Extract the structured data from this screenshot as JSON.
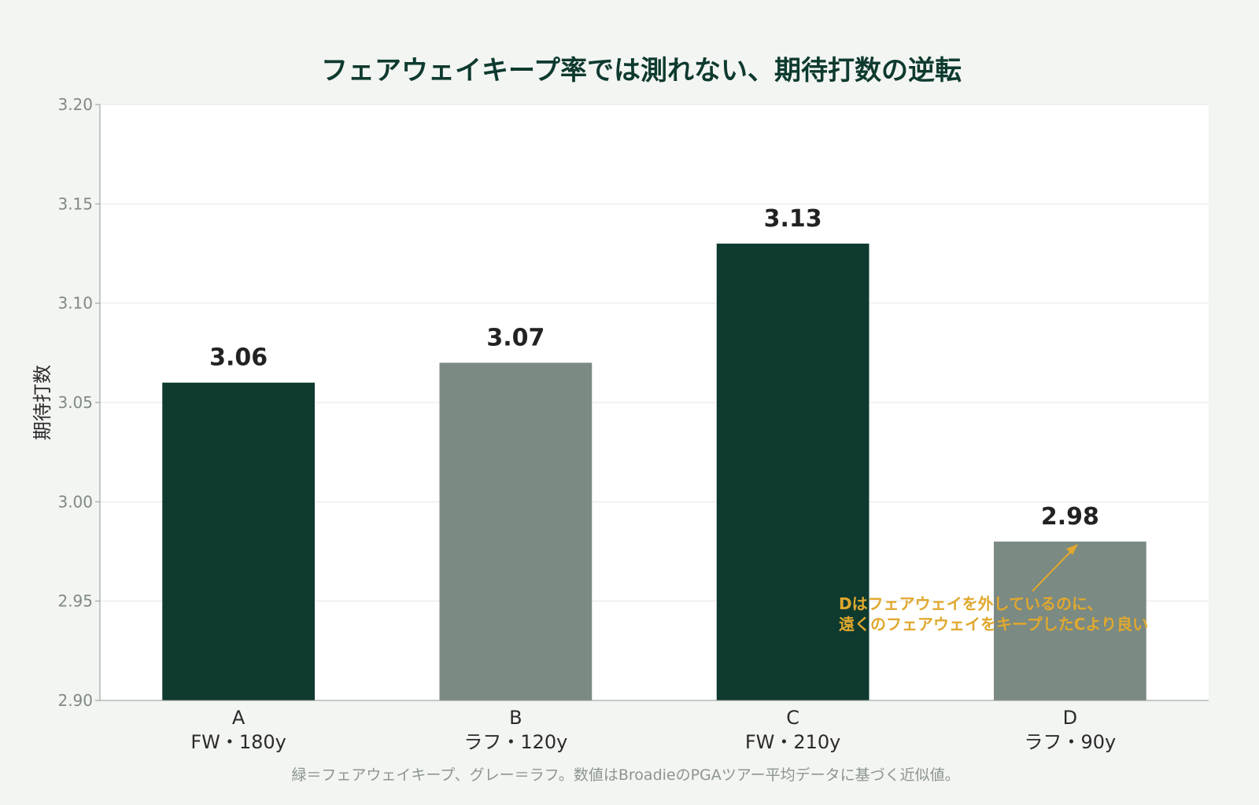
{
  "colors": {
    "background": "#f3f5f2",
    "plot_background": "#ffffff",
    "fairway": "#0e3a2f",
    "rough": "#7b8a82",
    "annotation": "#e0a82e"
  },
  "chart_data": {
    "type": "bar",
    "title": "フェアウェイキープ率では測れない、期待打数の逆転",
    "xlabel": "",
    "ylabel": "期待打数",
    "ylim": [
      2.9,
      3.2
    ],
    "yticks": [
      "3.20",
      "3.15",
      "3.10",
      "3.05",
      "3.00",
      "2.95",
      "2.90"
    ],
    "grid": true,
    "categories": [
      {
        "letter": "A",
        "sub": "FW・180y"
      },
      {
        "letter": "B",
        "sub": "ラフ・120y"
      },
      {
        "letter": "C",
        "sub": "FW・210y"
      },
      {
        "letter": "D",
        "sub": "ラフ・90y"
      }
    ],
    "values": [
      3.06,
      3.07,
      3.13,
      2.98
    ],
    "value_labels": [
      "3.06",
      "3.07",
      "3.13",
      "2.98"
    ],
    "bar_kind": [
      "fairway",
      "rough",
      "fairway",
      "rough"
    ],
    "annotation": {
      "target": "D",
      "lines": [
        "Dはフェアウェイを外しているのに、",
        "遠くのフェアウェイをキープしたCより良い"
      ]
    },
    "footnote": "緑＝フェアウェイキープ、グレー＝ラフ。数値はBroadieのPGAツアー平均データに基づく近似値。"
  }
}
